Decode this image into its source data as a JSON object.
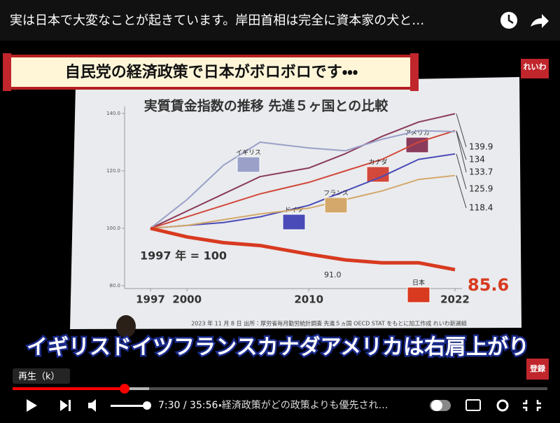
{
  "player": {
    "video_title": "実は日本で大変なことが起きています。岸田首相は完全に資本家の犬と…",
    "banner": "自民党の経済政策で日本がボロボロです・・・",
    "channel_logo": "れいわ",
    "caption": "イギリスドイツフランスカナダアメリカは右肩上がり",
    "subscribe": "登録",
    "tooltip": "再生（k）",
    "time": "7:30 / 35:56",
    "chapter": "・経済政策がどの政策よりも優先され…"
  },
  "chart_data": {
    "type": "line",
    "title": "実質賃金指数の推移 先進５ヶ国との比較",
    "base_note": "1997 年 = 100",
    "annotation": "91.0",
    "source": "2023 年 11 月 8 日 出所：厚労省毎月勤労統計調査 先進５ヵ国 OECD STAT をもとに加工作成 れいわ新選組",
    "x": [
      1997,
      2000,
      2003,
      2006,
      2010,
      2013,
      2016,
      2019,
      2022
    ],
    "xlim": [
      1997,
      2022
    ],
    "xticks": [
      1997,
      2000,
      2010,
      2022
    ],
    "ylim": [
      80,
      140
    ],
    "yticks": [
      {
        "value": 80,
        "label": "80.0"
      },
      {
        "value": 100,
        "label": "100.0"
      },
      {
        "value": 120,
        "label": "120.0"
      },
      {
        "value": 140,
        "label": "140.0"
      }
    ],
    "series": [
      {
        "name": "アメリカ",
        "color": "#8a3a5a",
        "values": [
          100,
          106,
          112,
          118,
          121,
          126,
          132,
          137,
          139.9
        ]
      },
      {
        "name": "カナダ",
        "color": "#d2483a",
        "values": [
          100,
          104,
          108,
          112,
          116,
          120,
          124,
          130,
          134.0
        ]
      },
      {
        "name": "イギリス",
        "color": "#9aa0c8",
        "values": [
          100,
          110,
          122,
          130,
          128,
          127,
          131,
          134,
          133.7
        ]
      },
      {
        "name": "ドイツ",
        "color": "#4a4ab8",
        "values": [
          100,
          101,
          102,
          104,
          108,
          113,
          118,
          124,
          125.9
        ]
      },
      {
        "name": "フランス",
        "color": "#d4a86a",
        "values": [
          100,
          101,
          103,
          105,
          107,
          110,
          113,
          117,
          118.4
        ]
      },
      {
        "name": "日本",
        "color": "#d83a20",
        "values": [
          100,
          97,
          95,
          94,
          91,
          89,
          88,
          88,
          85.6
        ]
      }
    ]
  }
}
